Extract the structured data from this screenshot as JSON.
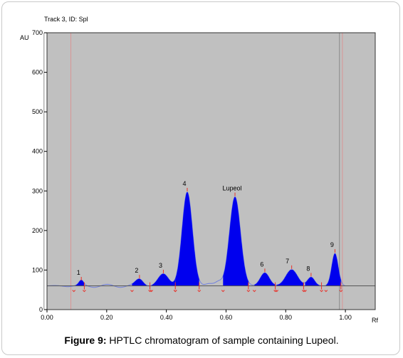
{
  "track_label": "Track 3, ID: Spl",
  "caption": {
    "label": "Figure 9:",
    "text": " HPTLC chromatogram of sample containing Lupeol."
  },
  "colors": {
    "plot_bg": "#c0c0c0",
    "peak_fill": "#0000ee",
    "baseline_trace": "#6f7fe0",
    "marker": "#e8322a",
    "guide": "#d89494"
  },
  "chart_data": {
    "type": "area",
    "xlabel": "Rf",
    "ylabel": "AU",
    "xlim": [
      0,
      1.1
    ],
    "ylim": [
      0,
      700
    ],
    "x_ticks": [
      0.0,
      0.2,
      0.4,
      0.6,
      0.8,
      1.0
    ],
    "x_tick_labels": [
      "0.00",
      "0.20",
      "0.40",
      "0.60",
      "0.80",
      "1.00"
    ],
    "y_ticks": [
      0,
      100,
      200,
      300,
      400,
      500,
      600,
      700
    ],
    "y_tick_labels": [
      "0",
      "100",
      "200",
      "300",
      "400",
      "500",
      "600",
      "700"
    ],
    "baseline": 60,
    "front_lines": [
      -0.01,
      0.98
    ],
    "guide_lines": [
      0.08,
      0.99
    ],
    "peaks": [
      {
        "label": "1",
        "rf": 0.115,
        "height": 72,
        "start": 0.09,
        "end": 0.125
      },
      {
        "label": "2",
        "rf": 0.31,
        "height": 77,
        "start": 0.285,
        "end": 0.345
      },
      {
        "label": "3",
        "rf": 0.39,
        "height": 90,
        "start": 0.35,
        "end": 0.43
      },
      {
        "label": "4",
        "rf": 0.47,
        "height": 297,
        "start": 0.43,
        "end": 0.51
      },
      {
        "label": "Lupeol",
        "rf": 0.63,
        "height": 285,
        "start": 0.59,
        "end": 0.675
      },
      {
        "label": "6",
        "rf": 0.73,
        "height": 93,
        "start": 0.695,
        "end": 0.765
      },
      {
        "label": "7",
        "rf": 0.82,
        "height": 101,
        "start": 0.77,
        "end": 0.86
      },
      {
        "label": "8",
        "rf": 0.885,
        "height": 82,
        "start": 0.865,
        "end": 0.92
      },
      {
        "label": "9",
        "rf": 0.965,
        "height": 142,
        "start": 0.935,
        "end": 0.985
      }
    ]
  }
}
